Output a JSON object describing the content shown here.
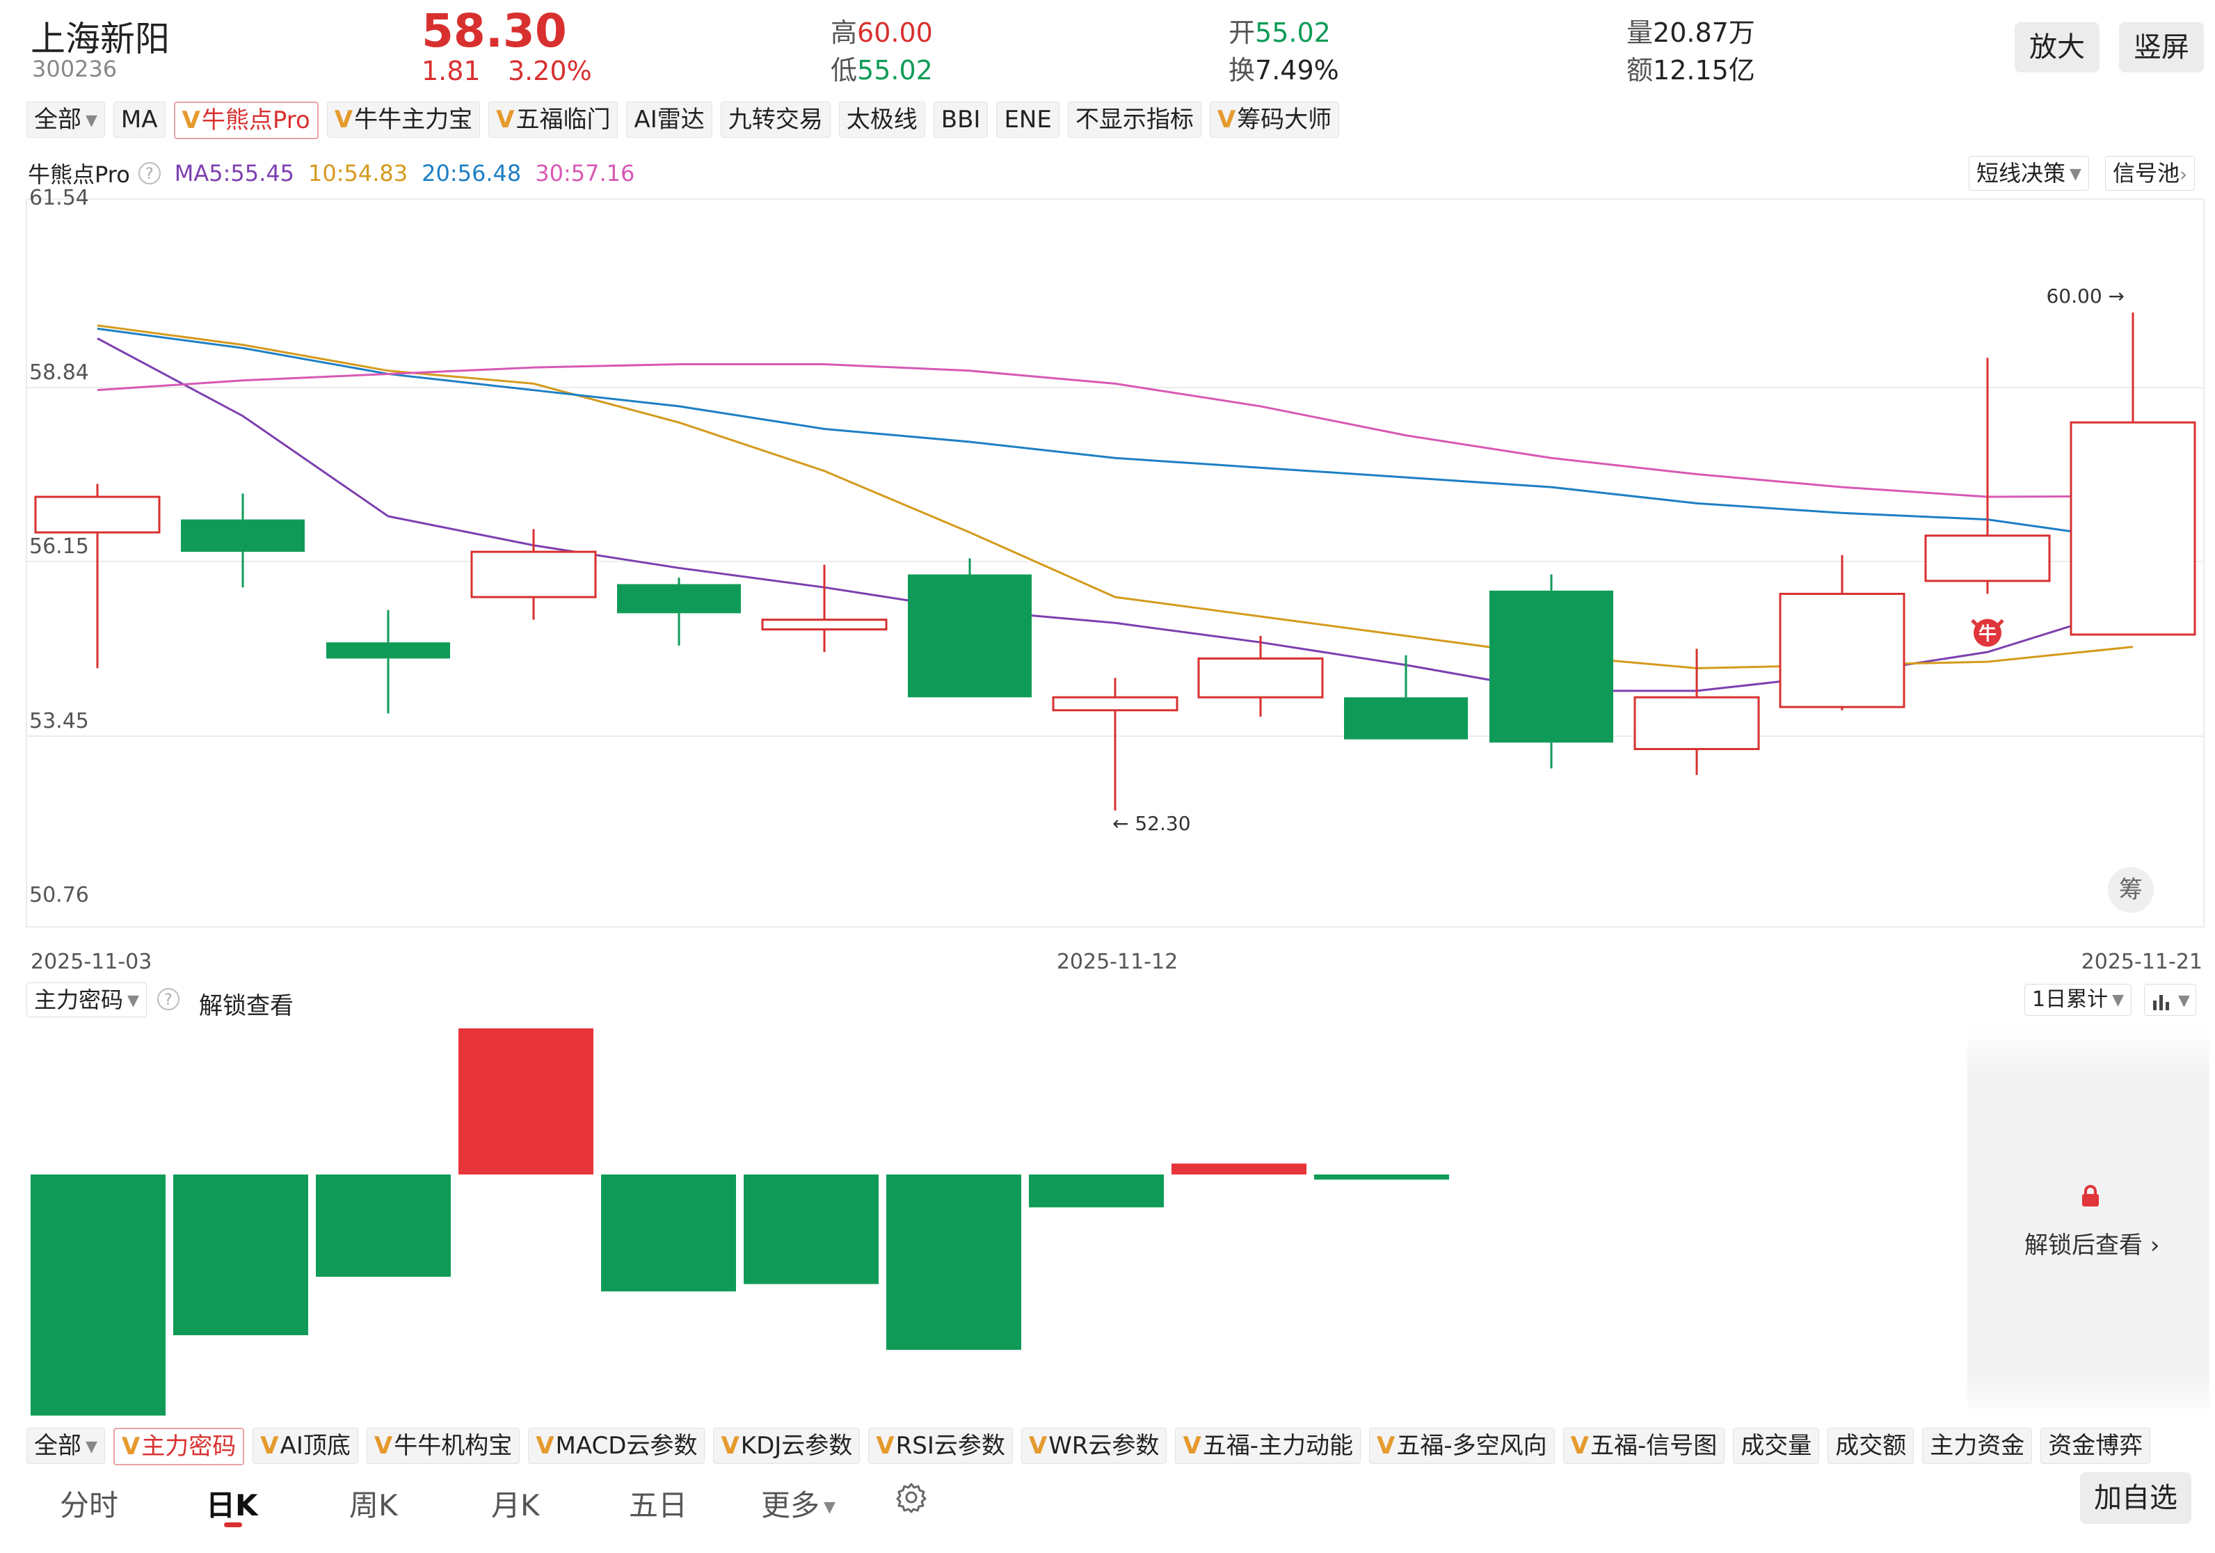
{
  "header": {
    "name": "上海新阳",
    "code": "300236",
    "price": "58.30",
    "change": "1.81",
    "change_pct": "3.20%",
    "high_label": "高",
    "high": "60.00",
    "low_label": "低",
    "low": "55.02",
    "open_label": "开",
    "open": "55.02",
    "turnover_label": "换",
    "turnover": "7.49%",
    "volume_label": "量",
    "volume": "20.87万",
    "amount_label": "额",
    "amount": "12.15亿",
    "zoom_button": "放大",
    "portrait_button": "竖屏"
  },
  "indicator_tabs": [
    {
      "label": "全部",
      "v": false,
      "dropdown": true
    },
    {
      "label": "MA",
      "v": false
    },
    {
      "label": "牛熊点Pro",
      "v": true,
      "active": true
    },
    {
      "label": "牛牛主力宝",
      "v": true
    },
    {
      "label": "五福临门",
      "v": true
    },
    {
      "label": "AI雷达",
      "v": false
    },
    {
      "label": "九转交易",
      "v": false
    },
    {
      "label": "太极线",
      "v": false
    },
    {
      "label": "BBI",
      "v": false
    },
    {
      "label": "ENE",
      "v": false
    },
    {
      "label": "不显示指标",
      "v": false
    },
    {
      "label": "筹码大师",
      "v": true
    }
  ],
  "legend": {
    "indicator": "牛熊点Pro",
    "help": "?",
    "ma5": "MA5:55.45",
    "ma10": "10:54.83",
    "ma20": "20:56.48",
    "ma30": "30:57.16",
    "strategy_button": "短线决策",
    "signal_button": "信号池"
  },
  "colors": {
    "up": "#d8302f",
    "down": "#0f9b57",
    "ma5": "#7d3fb0",
    "ma10": "#d49a1c",
    "ma20": "#1e7fc4",
    "ma30": "#d858b4"
  },
  "chart_data": {
    "type": "candlestick",
    "y_ticks": [
      "61.54",
      "58.84",
      "56.15",
      "53.45",
      "50.76"
    ],
    "ylim": [
      50.76,
      61.54
    ],
    "x_tick_labels": [
      "2025-11-03",
      "2025-11-12",
      "2025-11-21"
    ],
    "candles": [
      {
        "o": 56.6,
        "c": 57.15,
        "h": 57.35,
        "l": 54.5
      },
      {
        "o": 56.8,
        "c": 56.3,
        "h": 57.2,
        "l": 55.75
      },
      {
        "o": 54.9,
        "c": 54.65,
        "h": 55.4,
        "l": 53.8
      },
      {
        "o": 55.6,
        "c": 56.3,
        "h": 56.65,
        "l": 55.25
      },
      {
        "o": 55.8,
        "c": 55.35,
        "h": 55.9,
        "l": 54.85
      },
      {
        "o": 55.1,
        "c": 55.25,
        "h": 56.1,
        "l": 54.75
      },
      {
        "o": 55.95,
        "c": 54.05,
        "h": 56.2,
        "l": 54.05
      },
      {
        "o": 53.85,
        "c": 54.05,
        "h": 54.35,
        "l": 52.3
      },
      {
        "o": 54.05,
        "c": 54.65,
        "h": 55.0,
        "l": 53.75
      },
      {
        "o": 54.05,
        "c": 53.4,
        "h": 54.7,
        "l": 53.4
      },
      {
        "o": 55.7,
        "c": 53.35,
        "h": 55.95,
        "l": 52.95
      },
      {
        "o": 53.25,
        "c": 54.05,
        "h": 54.8,
        "l": 52.85
      },
      {
        "o": 53.9,
        "c": 55.65,
        "h": 56.25,
        "l": 53.85
      },
      {
        "o": 55.85,
        "c": 56.55,
        "h": 59.3,
        "l": 55.65
      },
      {
        "o": 55.02,
        "c": 58.3,
        "h": 60.0,
        "l": 55.02
      }
    ],
    "high_marker": "60.00 →",
    "low_marker": "← 52.30",
    "series": [
      {
        "name": "MA5",
        "values": [
          59.6,
          58.4,
          56.85,
          56.4,
          56.05,
          55.75,
          55.4,
          55.2,
          54.9,
          54.55,
          54.15,
          54.15,
          54.4,
          54.75,
          55.45
        ]
      },
      {
        "name": "10",
        "values": [
          59.8,
          59.5,
          59.1,
          58.9,
          58.3,
          57.55,
          56.6,
          55.6,
          55.3,
          55.0,
          54.7,
          54.5,
          54.55,
          54.6,
          54.83
        ]
      },
      {
        "name": "20",
        "values": [
          59.75,
          59.45,
          59.05,
          58.8,
          58.55,
          58.2,
          58.0,
          57.75,
          57.6,
          57.45,
          57.3,
          57.05,
          56.9,
          56.8,
          56.48
        ]
      },
      {
        "name": "30",
        "values": [
          58.8,
          58.95,
          59.05,
          59.15,
          59.2,
          59.2,
          59.1,
          58.9,
          58.55,
          58.1,
          57.75,
          57.5,
          57.3,
          57.15,
          57.16
        ]
      }
    ],
    "dividend_marker": "牛",
    "chips_badge": "筹"
  },
  "lower_panel": {
    "indicator": "主力密码",
    "help": "?",
    "unlock_link": "解锁查看",
    "accumulate_button": "1日累计",
    "chart_type_button": "chart-type",
    "locked_text": "解锁后查看",
    "bars": [
      -3.3,
      -2.2,
      -1.4,
      2.0,
      -1.6,
      -1.5,
      -2.4,
      -0.45,
      0.15,
      -0.07
    ],
    "ylim": [
      -3.3,
      2.0
    ]
  },
  "bottom_tabs": [
    {
      "label": "全部",
      "v": false,
      "dropdown": true
    },
    {
      "label": "主力密码",
      "v": true,
      "active": true
    },
    {
      "label": "AI顶底",
      "v": true
    },
    {
      "label": "牛牛机构宝",
      "v": true
    },
    {
      "label": "MACD云参数",
      "v": true
    },
    {
      "label": "KDJ云参数",
      "v": true
    },
    {
      "label": "RSI云参数",
      "v": true
    },
    {
      "label": "WR云参数",
      "v": true
    },
    {
      "label": "五福-主力动能",
      "v": true
    },
    {
      "label": "五福-多空风向",
      "v": true
    },
    {
      "label": "五福-信号图",
      "v": true
    },
    {
      "label": "成交量",
      "v": false
    },
    {
      "label": "成交额",
      "v": false
    },
    {
      "label": "主力资金",
      "v": false
    },
    {
      "label": "资金博弈",
      "v": false
    }
  ],
  "periods": {
    "minute": "分时",
    "day": "日K",
    "week": "周K",
    "month": "月K",
    "five_day": "五日",
    "more": "更多",
    "add_watchlist": "加自选"
  }
}
